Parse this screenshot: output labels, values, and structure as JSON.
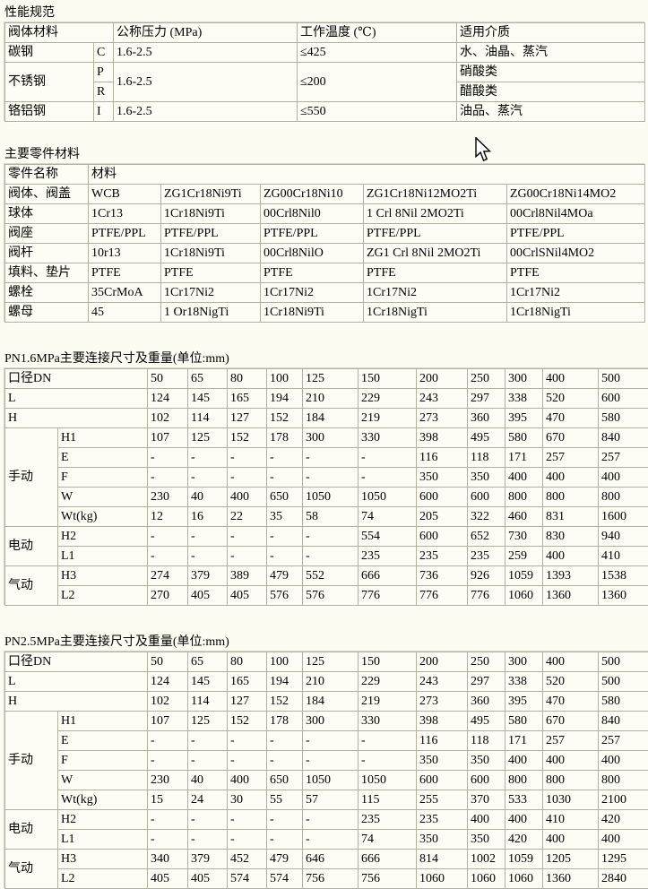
{
  "performance": {
    "title": "性能规范",
    "headers": [
      "阀体材料",
      "公称压力 (MPa)",
      "工作温度 (℃)",
      "适用介质"
    ],
    "carbon": {
      "name": "碳钢",
      "code": "C",
      "pressure": "1.6-2.5",
      "temp": "≤425",
      "medium": "水、油晶、蒸汽"
    },
    "stainless": {
      "name": "不锈钢",
      "code_top": "P",
      "code_bottom": "R",
      "pressure": "1.6-2.5",
      "temp": "≤200",
      "medium_top": "硝酸类",
      "medium_bottom": "醋酸类"
    },
    "chromium": {
      "name": "铬铝钢",
      "code": "I",
      "pressure": "1.6-2.5",
      "temp": "≤550",
      "medium": "油品、蒸汽"
    }
  },
  "parts": {
    "title": "主要零件材料",
    "headers": [
      "零件名称",
      "材料"
    ],
    "rows": [
      [
        "阀体、阀盖",
        "WCB",
        "ZG1Cr18Ni9Ti",
        "ZG00Cr18Ni10",
        "ZG1Cr18Ni12MO2Ti",
        "ZG00Cr18Ni14MO2"
      ],
      [
        "球体",
        "1Cr13",
        "1Cr18Ni9Ti",
        "00Crl8Nil0",
        "1 Crl 8Nil 2MO2Ti",
        "00Crl8Nil4MOa"
      ],
      [
        "阀座",
        "PTFE/PPL",
        "PTFE/PPL",
        "PTFE/PPL",
        "PTFE/PPL",
        "PTFE/PPL"
      ],
      [
        "阀杆",
        "10r13",
        "1Cr18Ni9Ti",
        "00Crl8NilO",
        "ZG1 Crl 8Nil 2MO2Ti",
        "00CrlSNil4MO2"
      ],
      [
        "填料、垫片",
        "PTFE",
        "PTFE",
        "PTFE",
        "PTFE",
        "PTFE"
      ],
      [
        "螺栓",
        "35CrMoA",
        "1Cr17Ni2",
        "1Cr17Ni2",
        "1Cr17Ni2",
        "1Cr17Ni2"
      ],
      [
        "螺母",
        "45",
        "1 Or18NigTi",
        "1Cr18Ni9Ti",
        "1Cr18NigTi",
        "1Cr18NigTi"
      ]
    ]
  },
  "dim16": {
    "title": "PN1.6MPa主要连接尺寸及重量(单位:mm)",
    "dn": {
      "label": "口径DN",
      "values": [
        "50",
        "65",
        "80",
        "100",
        "125",
        "150",
        "200",
        "250",
        "300",
        "400",
        "500"
      ]
    },
    "plain": [
      {
        "label": "L",
        "values": [
          "124",
          "145",
          "165",
          "194",
          "210",
          "229",
          "243",
          "297",
          "338",
          "520",
          "600"
        ]
      },
      {
        "label": "H",
        "values": [
          "102",
          "114",
          "127",
          "152",
          "184",
          "219",
          "273",
          "360",
          "395",
          "470",
          "580"
        ]
      }
    ],
    "groups": [
      {
        "label": "手动",
        "rows": [
          {
            "label": "H1",
            "values": [
              "107",
              "125",
              "152",
              "178",
              "300",
              "330",
              "398",
              "495",
              "580",
              "670",
              "840"
            ]
          },
          {
            "label": "E",
            "values": [
              "-",
              "-",
              "-",
              "-",
              "-",
              "-",
              "116",
              "118",
              "171",
              "257",
              "257"
            ]
          },
          {
            "label": "F",
            "values": [
              "-",
              "-",
              "-",
              "-",
              "-",
              "-",
              "350",
              "350",
              "400",
              "400",
              "400"
            ]
          },
          {
            "label": "W",
            "values": [
              "230",
              "40",
              "400",
              "650",
              "1050",
              "1050",
              "600",
              "600",
              "800",
              "800",
              "800"
            ]
          },
          {
            "label": "Wt(kg)",
            "values": [
              "12",
              "16",
              "22",
              "35",
              "58",
              "74",
              "205",
              "322",
              "460",
              "831",
              "1600"
            ]
          }
        ]
      },
      {
        "label": "电动",
        "rows": [
          {
            "label": "H2",
            "values": [
              "-",
              "-",
              "-",
              "-",
              "-",
              "554",
              "600",
              "652",
              "730",
              "830",
              "940"
            ]
          },
          {
            "label": "L1",
            "values": [
              "-",
              "-",
              "-",
              "-",
              "-",
              "235",
              "235",
              "235",
              "259",
              "400",
              "410"
            ]
          }
        ]
      },
      {
        "label": "气动",
        "rows": [
          {
            "label": "H3",
            "values": [
              "274",
              "379",
              "389",
              "479",
              "552",
              "666",
              "736",
              "926",
              "1059",
              "1393",
              "1538"
            ]
          },
          {
            "label": "L2",
            "values": [
              "270",
              "405",
              "405",
              "576",
              "576",
              "776",
              "776",
              "776",
              "1060",
              "1360",
              "1360"
            ]
          }
        ]
      }
    ]
  },
  "dim25": {
    "title": "PN2.5MPa主要连接尺寸及重量(单位:mm)",
    "dn": {
      "label": "口径DN",
      "values": [
        "50",
        "65",
        "80",
        "100",
        "125",
        "150",
        "200",
        "250",
        "300",
        "400",
        "500"
      ]
    },
    "plain": [
      {
        "label": "L",
        "values": [
          "124",
          "145",
          "165",
          "194",
          "210",
          "229",
          "243",
          "297",
          "338",
          "520",
          "500"
        ]
      },
      {
        "label": "H",
        "values": [
          "102",
          "114",
          "127",
          "152",
          "184",
          "219",
          "273",
          "360",
          "395",
          "470",
          "580"
        ]
      }
    ],
    "groups": [
      {
        "label": "手动",
        "rows": [
          {
            "label": "H1",
            "values": [
              "107",
              "125",
              "152",
              "178",
              "300",
              "330",
              "398",
              "495",
              "580",
              "670",
              "840"
            ]
          },
          {
            "label": "E",
            "values": [
              "-",
              "-",
              "-",
              "-",
              "-",
              "-",
              "116",
              "118",
              "171",
              "257",
              "257"
            ]
          },
          {
            "label": "F",
            "values": [
              "-",
              "-",
              "-",
              "-",
              "-",
              "-",
              "350",
              "350",
              "400",
              "400",
              "400"
            ]
          },
          {
            "label": "W",
            "values": [
              "230",
              "40",
              "400",
              "650",
              "1050",
              "1050",
              "600",
              "600",
              "800",
              "800",
              "800"
            ]
          },
          {
            "label": "Wt(kg)",
            "values": [
              "15",
              "24",
              "30",
              "55",
              "57",
              "115",
              "255",
              "370",
              "533",
              "1030",
              "2100"
            ]
          }
        ]
      },
      {
        "label": "电动",
        "rows": [
          {
            "label": "H2",
            "values": [
              "-",
              "-",
              "-",
              "-",
              "-",
              "235",
              "235",
              "400",
              "400",
              "410",
              "420"
            ]
          },
          {
            "label": "L1",
            "values": [
              "-",
              "-",
              "-",
              "-",
              "-",
              "74",
              "350",
              "350",
              "420",
              "400",
              "400"
            ]
          }
        ]
      },
      {
        "label": "气动",
        "rows": [
          {
            "label": "H3",
            "values": [
              "340",
              "379",
              "452",
              "479",
              "646",
              "666",
              "814",
              "1002",
              "1059",
              "1205",
              "1295"
            ]
          },
          {
            "label": "L2",
            "values": [
              "405",
              "405",
              "574",
              "574",
              "756",
              "756",
              "1060",
              "1060",
              "1060",
              "1360",
              "2840"
            ]
          }
        ]
      }
    ]
  }
}
